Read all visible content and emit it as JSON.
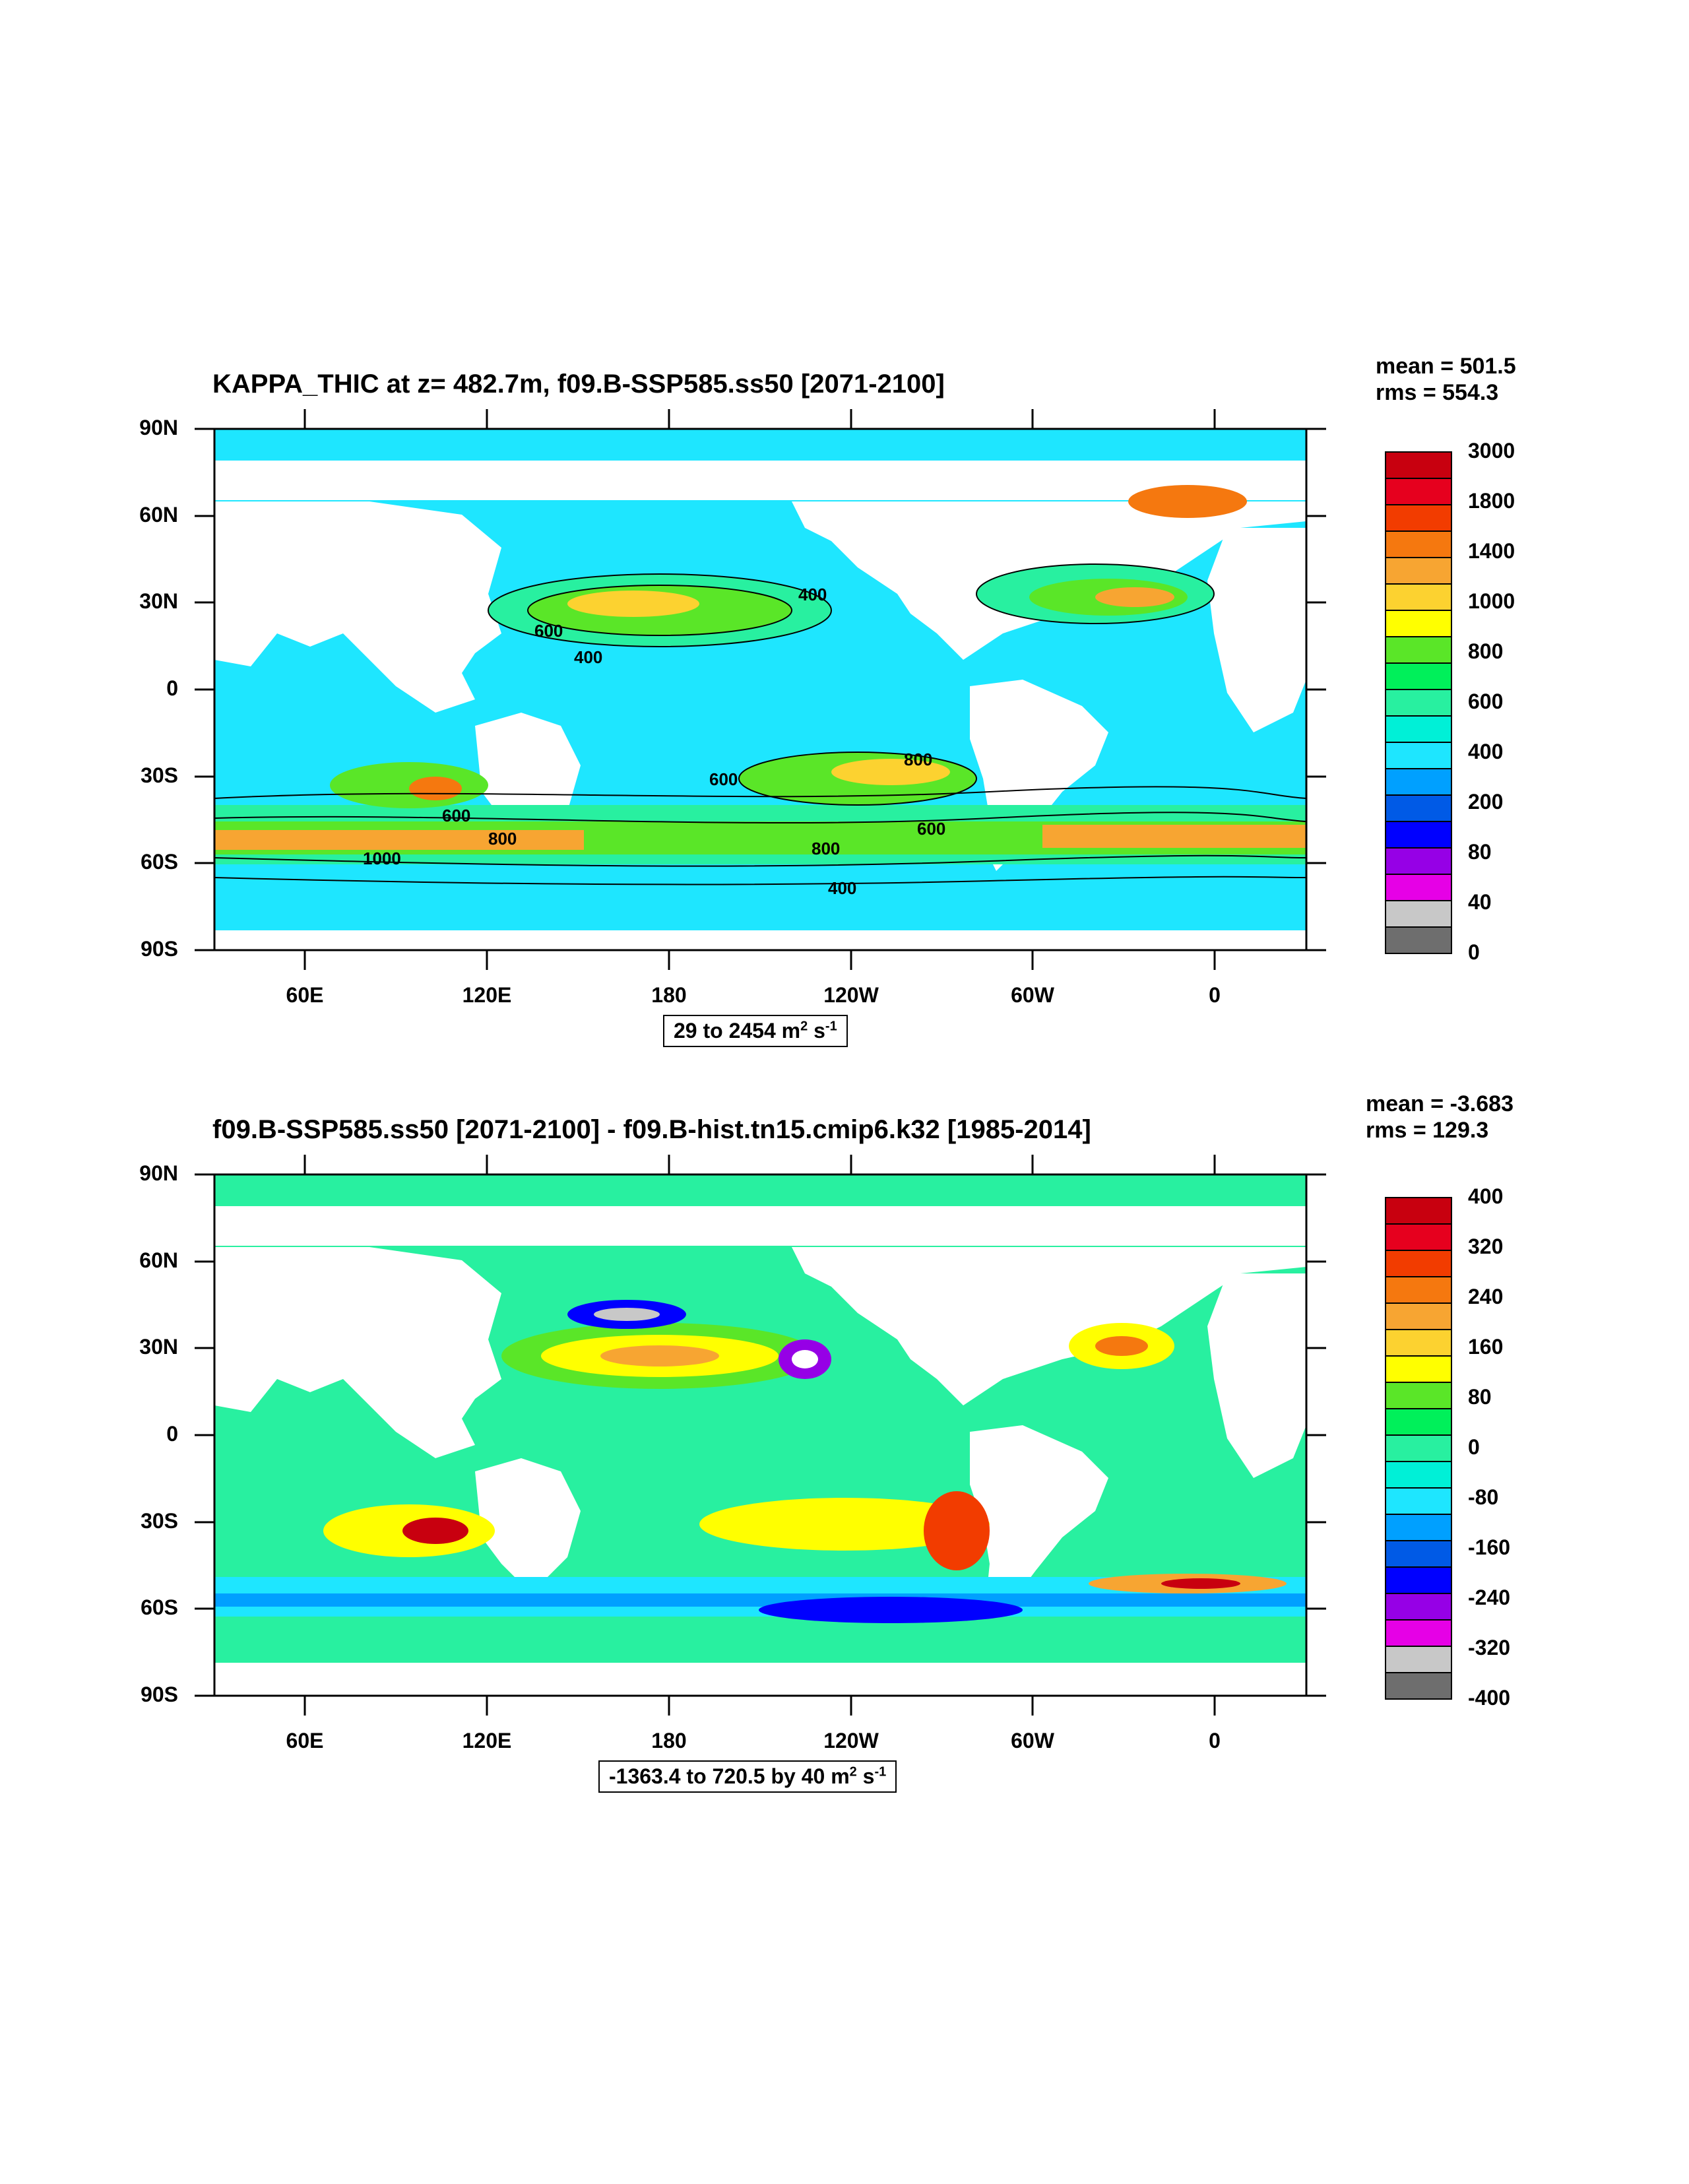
{
  "panels": [
    {
      "title": "KAPPA_THIC at z= 482.7m, f09.B-SSP585.ss50 [2071-2100]",
      "stats": {
        "mean": "mean = 501.5",
        "rms": "rms = 554.3"
      },
      "range_main": "29 to 2454 m",
      "range_sup1": "2",
      "range_mid": " s",
      "range_sup2": "-1",
      "contour_labels": [
        "400",
        "600",
        "800",
        "1000"
      ],
      "colorbar": {
        "labels": [
          "3000",
          "1800",
          "1400",
          "1000",
          "800",
          "600",
          "400",
          "200",
          "80",
          "40",
          "0"
        ],
        "colors": [
          "#c8000f",
          "#e6001e",
          "#f23c00",
          "#f5780f",
          "#f7a532",
          "#fcd230",
          "#ffff00",
          "#5ae628",
          "#00f05a",
          "#28f0a0",
          "#00f0d7",
          "#1ee6ff",
          "#00a0ff",
          "#005ae6",
          "#0000ff",
          "#9600e6",
          "#e600e6",
          "#c8c8c8",
          "#6e6e6e"
        ]
      }
    },
    {
      "title": "f09.B-SSP585.ss50 [2071-2100] - f09.B-hist.tn15.cmip6.k32 [1985-2014]",
      "stats": {
        "mean": "mean = -3.683",
        "rms": "rms = 129.3"
      },
      "range_main": "-1363.4 to 720.5 by 40 m",
      "range_sup1": "2",
      "range_mid": " s",
      "range_sup2": "-1",
      "colorbar": {
        "labels": [
          "400",
          "320",
          "240",
          "160",
          "80",
          "0",
          "-80",
          "-160",
          "-240",
          "-320",
          "-400"
        ],
        "colors": [
          "#c8000f",
          "#e6001e",
          "#f23c00",
          "#f5780f",
          "#f7a532",
          "#fcd230",
          "#ffff00",
          "#5ae628",
          "#00f05a",
          "#28f0a0",
          "#00f0d7",
          "#1ee6ff",
          "#00a0ff",
          "#005ae6",
          "#0000ff",
          "#9600e6",
          "#e600e6",
          "#c8c8c8",
          "#6e6e6e"
        ]
      }
    }
  ],
  "chart_data": {
    "type": "heatmap",
    "yticks": [
      "90N",
      "60N",
      "30N",
      "0",
      "30S",
      "60S",
      "90S"
    ],
    "xticks": [
      "60E",
      "120E",
      "180",
      "120W",
      "60W",
      "0"
    ],
    "land_color": "#ffffff",
    "ocean_base_color": "#1ee6ff"
  }
}
